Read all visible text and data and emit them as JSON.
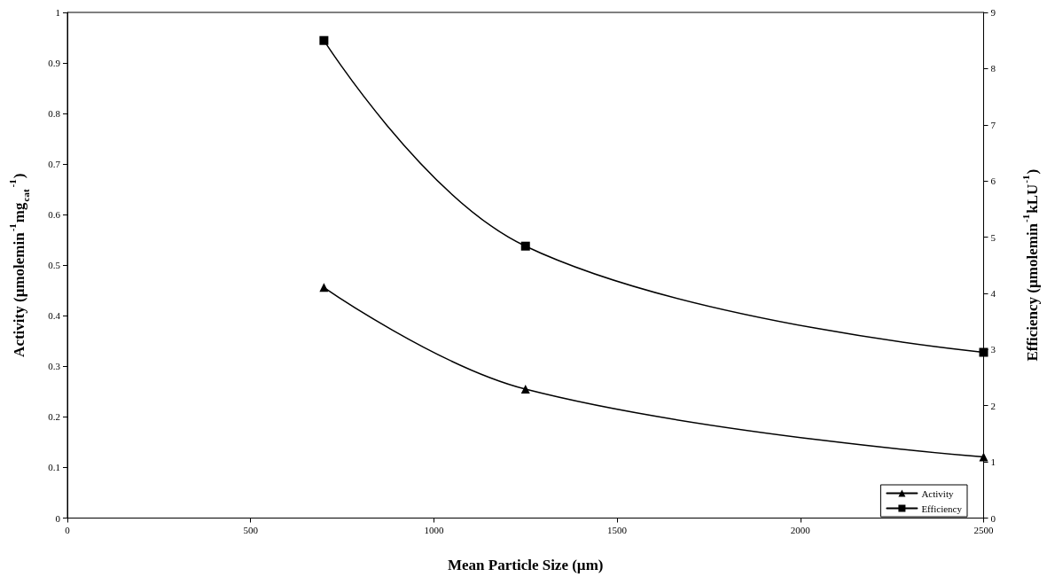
{
  "chart_data": {
    "type": "line",
    "xlabel": "Mean Particle Size (µm)",
    "ylabel": "Activity (µmolemin$^{-1}$mg$_{cat}$$^{-1}$)",
    "y2label": "Efficiency (µmolemin$^{-1}$kLU$^{-1}$)",
    "x": [
      700,
      1250,
      2500
    ],
    "series": [
      {
        "name": "Activity",
        "color": "#000000",
        "marker": "triangle",
        "values": [
          0.456,
          0.255,
          0.121
        ]
      },
      {
        "name": "Efficiency",
        "color": "#000000",
        "marker": "square",
        "axis": "y2",
        "values": [
          8.5,
          4.84,
          2.95
        ]
      }
    ],
    "xlim": [
      0,
      2500
    ],
    "xticks": [
      0,
      500,
      1000,
      1500,
      2000,
      2500
    ],
    "ylim": [
      0,
      1
    ],
    "yticks": [
      0,
      0.1,
      0.2,
      0.3,
      0.4,
      0.5,
      0.6,
      0.7,
      0.8,
      0.9,
      1
    ],
    "y2lim": [
      0,
      9
    ],
    "y2ticks": [
      0,
      1,
      2,
      3,
      4,
      5,
      6,
      7,
      8,
      9
    ],
    "grid": false,
    "legend": "bottom right",
    "line_style": "solid"
  }
}
